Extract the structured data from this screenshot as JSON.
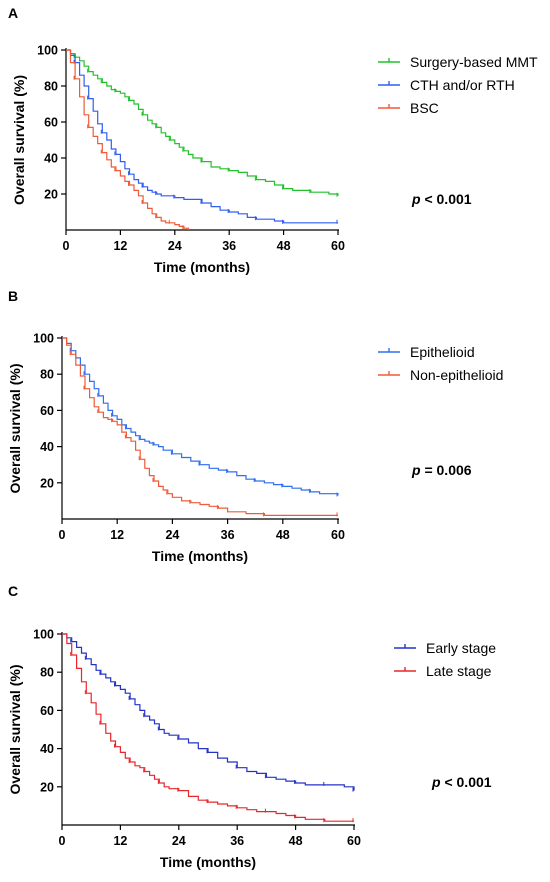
{
  "chart_data": [
    {
      "type": "line",
      "panel_label": "A",
      "xlabel": "Time (months)",
      "ylabel": "Overall survival (%)",
      "xlim": [
        0,
        60
      ],
      "ylim": [
        0,
        100
      ],
      "xticks": [
        "0",
        "12",
        "24",
        "36",
        "48",
        "60"
      ],
      "yticks": [
        "20",
        "40",
        "60",
        "80",
        "100"
      ],
      "legend_position": "top-right",
      "annotation": {
        "p_symbol": "p",
        "p_text": " < 0.001"
      },
      "series": [
        {
          "name": "Surgery-based MMT",
          "color": "#22c02a",
          "x": [
            0,
            1,
            2,
            3,
            4,
            5,
            6,
            7,
            8,
            9,
            10,
            11,
            12,
            13,
            14,
            15,
            16,
            17,
            18,
            19,
            20,
            21,
            22,
            23,
            24,
            25,
            26,
            27,
            28,
            30,
            32,
            34,
            36,
            38,
            40,
            42,
            44,
            46,
            48,
            50,
            52,
            54,
            56,
            58,
            60
          ],
          "y": [
            100,
            98,
            96,
            94,
            91,
            88,
            86,
            84,
            82,
            80,
            78,
            77,
            76,
            74,
            72,
            70,
            67,
            64,
            61,
            59,
            57,
            54,
            52,
            50,
            48,
            46,
            44,
            42,
            40,
            38,
            35,
            34,
            33,
            32,
            30,
            28,
            27,
            25,
            23,
            22,
            22,
            21,
            21,
            20,
            19
          ]
        },
        {
          "name": "CTH and/or RTH",
          "color": "#2f5ef0",
          "x": [
            0,
            1,
            2,
            3,
            4,
            5,
            6,
            7,
            8,
            9,
            10,
            11,
            12,
            13,
            14,
            15,
            16,
            17,
            18,
            19,
            20,
            21,
            22,
            24,
            26,
            28,
            30,
            32,
            34,
            36,
            38,
            40,
            42,
            44,
            46,
            48,
            52,
            56,
            60
          ],
          "y": [
            100,
            97,
            93,
            86,
            80,
            73,
            66,
            59,
            54,
            50,
            45,
            42,
            38,
            34,
            31,
            28,
            26,
            24,
            22,
            21,
            20,
            19,
            19,
            18,
            17,
            17,
            15,
            13,
            11,
            10,
            9,
            7,
            6,
            6,
            5,
            4,
            4,
            4,
            4
          ]
        },
        {
          "name": "BSC",
          "color": "#ef5a39",
          "x": [
            0,
            1,
            2,
            3,
            4,
            5,
            6,
            7,
            8,
            9,
            10,
            11,
            12,
            13,
            14,
            15,
            16,
            17,
            18,
            19,
            20,
            21,
            22,
            23,
            24,
            25,
            26,
            27
          ],
          "y": [
            100,
            93,
            84,
            74,
            64,
            57,
            52,
            48,
            43,
            39,
            35,
            33,
            30,
            27,
            25,
            22,
            19,
            15,
            12,
            9,
            7,
            5,
            4,
            4,
            3,
            2,
            1,
            0
          ]
        }
      ]
    },
    {
      "type": "line",
      "panel_label": "B",
      "xlabel": "Time (months)",
      "ylabel": "Overall survival (%)",
      "xlim": [
        0,
        60
      ],
      "ylim": [
        0,
        100
      ],
      "xticks": [
        "0",
        "12",
        "24",
        "36",
        "48",
        "60"
      ],
      "yticks": [
        "20",
        "40",
        "60",
        "80",
        "100"
      ],
      "legend_position": "top-right",
      "annotation": {
        "p_symbol": "p",
        "p_text": " = 0.006"
      },
      "series": [
        {
          "name": "Epithelioid",
          "color": "#2f6ff0",
          "x": [
            0,
            1,
            2,
            3,
            4,
            5,
            6,
            7,
            8,
            9,
            10,
            11,
            12,
            13,
            14,
            15,
            16,
            17,
            18,
            19,
            20,
            21,
            22,
            24,
            26,
            28,
            30,
            32,
            34,
            36,
            38,
            40,
            42,
            44,
            46,
            48,
            50,
            52,
            54,
            56,
            58,
            60
          ],
          "y": [
            100,
            97,
            93,
            89,
            85,
            80,
            76,
            72,
            68,
            64,
            60,
            57,
            55,
            52,
            50,
            48,
            46,
            44,
            43,
            42,
            41,
            40,
            38,
            36,
            34,
            32,
            30,
            28,
            27,
            26,
            24,
            22,
            21,
            20,
            19,
            18,
            17,
            16,
            15,
            14,
            14,
            13
          ]
        },
        {
          "name": "Non-epithelioid",
          "color": "#ef5a39",
          "x": [
            0,
            1,
            2,
            3,
            4,
            5,
            6,
            7,
            8,
            9,
            10,
            11,
            12,
            13,
            14,
            15,
            16,
            17,
            18,
            19,
            20,
            21,
            22,
            23,
            24,
            26,
            28,
            30,
            32,
            34,
            36,
            40,
            44,
            50,
            56,
            60
          ],
          "y": [
            100,
            96,
            91,
            85,
            79,
            72,
            67,
            62,
            59,
            56,
            55,
            54,
            52,
            48,
            45,
            43,
            38,
            33,
            28,
            24,
            21,
            18,
            16,
            14,
            12,
            10,
            9,
            8,
            7,
            6,
            4,
            3,
            2,
            2,
            2,
            2
          ]
        }
      ]
    },
    {
      "type": "line",
      "panel_label": "C",
      "xlabel": "Time (months)",
      "ylabel": "Overall survival (%)",
      "xlim": [
        0,
        60
      ],
      "ylim": [
        0,
        100
      ],
      "xticks": [
        "0",
        "12",
        "24",
        "36",
        "48",
        "60"
      ],
      "yticks": [
        "20",
        "40",
        "60",
        "80",
        "100"
      ],
      "legend_position": "top-right",
      "annotation": {
        "p_symbol": "p",
        "p_text": " < 0.001"
      },
      "series": [
        {
          "name": "Early stage",
          "color": "#2432c8",
          "x": [
            0,
            1,
            2,
            3,
            4,
            5,
            6,
            7,
            8,
            9,
            10,
            11,
            12,
            13,
            14,
            15,
            16,
            17,
            18,
            19,
            20,
            21,
            22,
            24,
            26,
            28,
            30,
            32,
            34,
            36,
            38,
            40,
            42,
            44,
            46,
            48,
            50,
            52,
            54,
            56,
            58,
            60
          ],
          "y": [
            100,
            98,
            96,
            93,
            90,
            87,
            84,
            81,
            79,
            77,
            75,
            73,
            71,
            69,
            66,
            63,
            60,
            57,
            55,
            53,
            50,
            48,
            47,
            45,
            43,
            40,
            38,
            35,
            33,
            30,
            28,
            27,
            25,
            24,
            23,
            22,
            21,
            21,
            21,
            21,
            20,
            18
          ]
        },
        {
          "name": "Late stage",
          "color": "#e8272a",
          "x": [
            0,
            1,
            2,
            3,
            4,
            5,
            6,
            7,
            8,
            9,
            10,
            11,
            12,
            13,
            14,
            15,
            16,
            17,
            18,
            19,
            20,
            21,
            22,
            24,
            26,
            28,
            30,
            32,
            34,
            36,
            38,
            40,
            42,
            44,
            46,
            48,
            50,
            52,
            54,
            56,
            58,
            60
          ],
          "y": [
            100,
            95,
            89,
            82,
            75,
            69,
            64,
            58,
            53,
            48,
            44,
            41,
            38,
            35,
            33,
            31,
            30,
            28,
            26,
            24,
            22,
            20,
            19,
            18,
            15,
            13,
            12,
            11,
            10,
            9,
            8,
            7,
            7,
            6,
            5,
            4,
            3,
            3,
            2,
            2,
            2,
            2
          ]
        }
      ]
    }
  ]
}
